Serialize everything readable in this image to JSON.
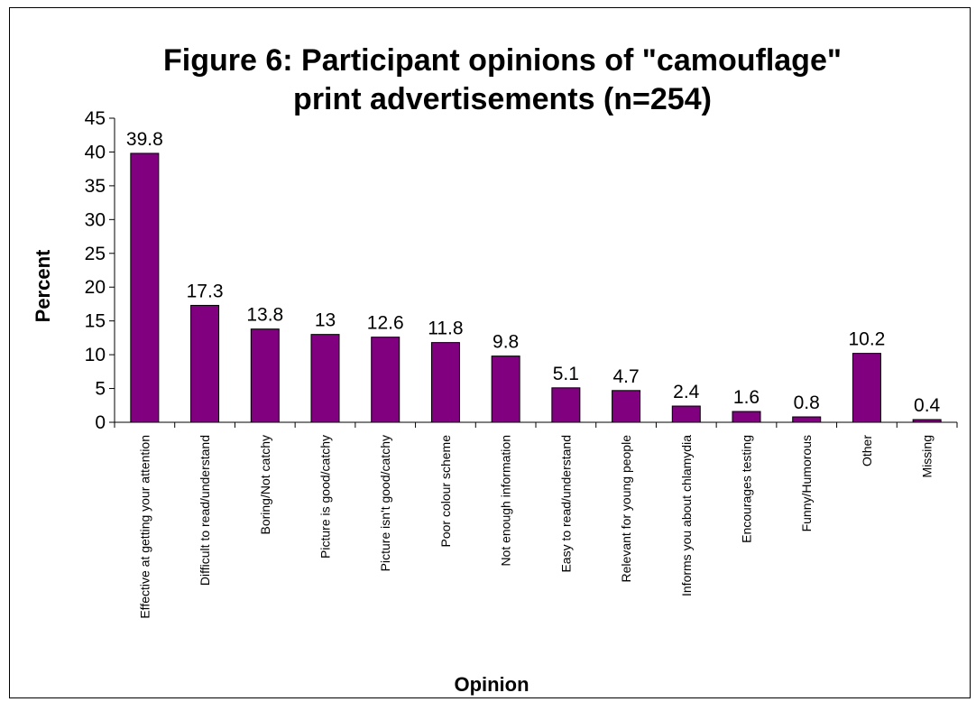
{
  "chart_data": {
    "type": "bar",
    "title_lines": [
      "Figure 6: Participant opinions of \"camouflage\"",
      "print advertisements (n=254)"
    ],
    "xlabel": "Opinion",
    "ylabel": "Percent",
    "ylim": [
      0,
      45
    ],
    "yticks": [
      0,
      5,
      10,
      15,
      20,
      25,
      30,
      35,
      40,
      45
    ],
    "categories": [
      "Effective at getting your attention",
      "Difficult to read/understand",
      "Boring/Not catchy",
      "Picture is good/catchy",
      "Picture isn't good/catchy",
      "Poor colour scheme",
      "Not enough information",
      "Easy to read/understand",
      "Relevant for young people",
      "Informs you about chlamydia",
      "Encourages testing",
      "Funny/Humorous",
      "Other",
      "Missing"
    ],
    "values": [
      39.8,
      17.3,
      13.8,
      13,
      12.6,
      11.8,
      9.8,
      5.1,
      4.7,
      2.4,
      1.6,
      0.8,
      10.2,
      0.4
    ],
    "data_labels": [
      "39.8",
      "17.3",
      "13.8",
      "13",
      "12.6",
      "11.8",
      "9.8",
      "5.1",
      "4.7",
      "2.4",
      "1.6",
      "0.8",
      "10.2",
      "0.4"
    ],
    "bar_color": "#800080",
    "grid": false,
    "legend": "none"
  }
}
